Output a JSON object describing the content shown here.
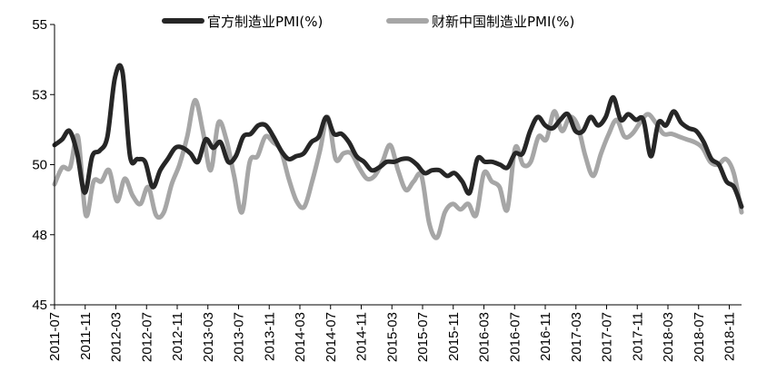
{
  "chart_data": {
    "type": "line",
    "y_tick_labels": [
      "45",
      "48",
      "50",
      "53",
      "55"
    ],
    "y_ticks": [
      45,
      47.5,
      50,
      52.5,
      55
    ],
    "ylim": [
      45,
      55
    ],
    "x_tick_labels": [
      "2011-07",
      "2011-11",
      "2012-03",
      "2012-07",
      "2012-11",
      "2013-03",
      "2013-07",
      "2013-11",
      "2014-03",
      "2014-07",
      "2014-11",
      "2015-03",
      "2015-07",
      "2015-11",
      "2016-03",
      "2016-07",
      "2016-11",
      "2017-03",
      "2017-07",
      "2017-11",
      "2018-03",
      "2018-07",
      "2018-11"
    ],
    "series": [
      {
        "name": "官方制造业PMI(%)",
        "color": "#262626",
        "values": [
          50.7,
          50.9,
          51.2,
          50.4,
          49.0,
          50.3,
          50.5,
          51.0,
          53.1,
          53.3,
          50.3,
          50.2,
          50.1,
          49.2,
          49.8,
          50.2,
          50.6,
          50.6,
          50.4,
          50.1,
          50.9,
          50.6,
          50.8,
          50.1,
          50.3,
          51.0,
          51.1,
          51.4,
          51.4,
          51.0,
          50.5,
          50.2,
          50.3,
          50.4,
          50.8,
          51.0,
          51.7,
          51.1,
          51.1,
          50.8,
          50.3,
          50.1,
          49.8,
          49.9,
          50.1,
          50.1,
          50.2,
          50.2,
          50.0,
          49.7,
          49.8,
          49.8,
          49.6,
          49.7,
          49.4,
          49.0,
          50.2,
          50.1,
          50.1,
          50.0,
          49.9,
          50.4,
          50.4,
          51.2,
          51.7,
          51.4,
          51.3,
          51.6,
          51.8,
          51.2,
          51.2,
          51.7,
          51.4,
          51.7,
          52.4,
          51.6,
          51.8,
          51.6,
          51.6,
          50.3,
          51.5,
          51.4,
          51.9,
          51.5,
          51.3,
          51.2,
          50.8,
          50.2,
          50.0,
          49.4,
          49.2,
          48.5
        ],
        "stroke_width": 5
      },
      {
        "name": "财新中国制造业PMI(%)",
        "color": "#a6a6a6",
        "values": [
          49.3,
          49.9,
          49.9,
          51.0,
          48.2,
          49.4,
          49.4,
          49.8,
          48.7,
          49.5,
          48.9,
          48.6,
          49.2,
          48.2,
          48.3,
          49.3,
          50.0,
          51.0,
          52.3,
          51.2,
          49.8,
          51.5,
          50.9,
          49.6,
          48.3,
          50.1,
          50.3,
          51.0,
          50.8,
          50.5,
          49.5,
          48.7,
          48.5,
          49.4,
          50.5,
          51.7,
          50.2,
          50.4,
          50.4,
          49.9,
          49.5,
          49.6,
          50.1,
          50.7,
          49.8,
          49.1,
          49.4,
          49.6,
          47.9,
          47.4,
          48.3,
          48.6,
          48.4,
          48.6,
          48.2,
          49.7,
          49.4,
          49.2,
          48.4,
          50.6,
          50.0,
          50.1,
          51.0,
          50.9,
          51.9,
          51.2,
          51.7,
          51.4,
          50.3,
          49.6,
          50.4,
          51.1,
          51.6,
          51.0,
          51.1,
          51.5,
          51.8,
          51.5,
          51.1,
          51.1,
          51.0,
          50.9,
          50.8,
          50.6,
          50.1,
          50.0,
          50.2,
          49.7,
          48.3
        ],
        "stroke_width": 5
      }
    ],
    "legend_position": "top-center",
    "grid": false
  }
}
